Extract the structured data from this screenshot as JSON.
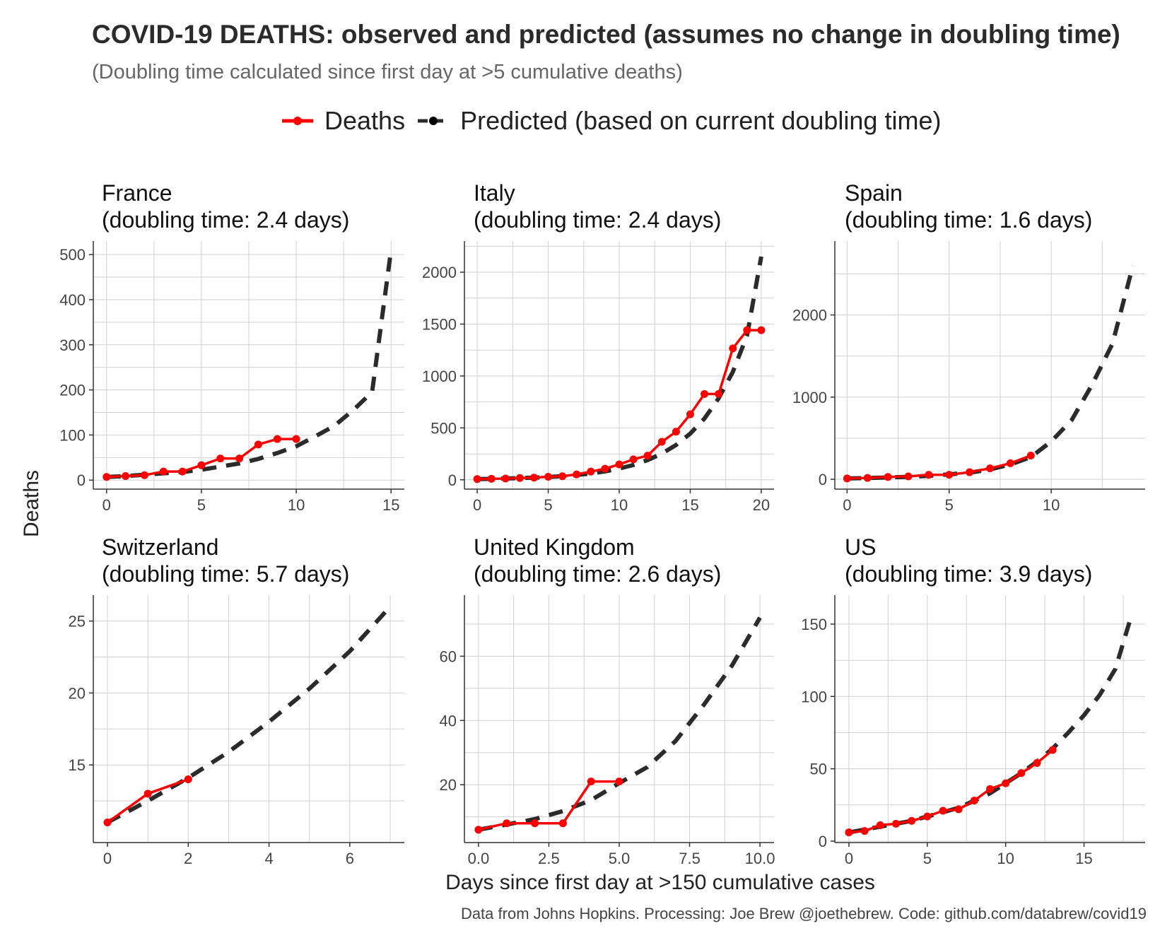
{
  "title": "COVID-19 DEATHS: observed and predicted (assumes no change in doubling time)",
  "subtitle": "(Doubling time calculated since first day at >5 cumulative deaths)",
  "legend": {
    "position": "top",
    "items": [
      {
        "label": "Deaths",
        "color": "#ff0000",
        "style": "solid-with-points"
      },
      {
        "label": "Predicted (based on current doubling time)",
        "color": "#2b2b2b",
        "style": "dashed"
      }
    ]
  },
  "ylabel": "Deaths",
  "xlabel": "Days since first day at >150 cumulative cases",
  "caption": "Data from Johns Hopkins. Processing: Joe Brew @joethebrew. Code: github.com/databrew/covid19",
  "colors": {
    "observed": "#ff0000",
    "predicted": "#2b2b2b",
    "grid": "#d0d0d0",
    "axis": "#333333"
  },
  "chart_data": [
    {
      "type": "line",
      "country": "France",
      "panel_title": "(doubling time: 2.4 days)",
      "xlim": [
        -0.7,
        15.7
      ],
      "ylim": [
        -20,
        530
      ],
      "xticks": [
        0,
        5,
        10,
        15
      ],
      "xtick_labels": [
        "0",
        "5",
        "10",
        "15"
      ],
      "yticks": [
        0,
        100,
        200,
        300,
        400,
        500
      ],
      "ytick_labels": [
        "0",
        "100",
        "200",
        "300",
        "400",
        "500"
      ],
      "grid": true,
      "observed": {
        "x": [
          0,
          1,
          2,
          3,
          4,
          5,
          6,
          7,
          8,
          9,
          10
        ],
        "y": [
          7,
          9,
          11,
          19,
          19,
          33,
          48,
          48,
          79,
          91,
          91
        ]
      },
      "predicted": {
        "x": [
          0,
          1,
          2,
          3,
          4,
          5,
          6,
          7,
          8,
          9,
          10,
          11,
          12,
          13,
          14,
          15
        ],
        "y": [
          7,
          9,
          12,
          15,
          18,
          23,
          30,
          37,
          47,
          60,
          75,
          97,
          120,
          155,
          195,
          510
        ]
      }
    },
    {
      "type": "line",
      "country": "Italy",
      "panel_title": "(doubling time: 2.4 days)",
      "xlim": [
        -0.9,
        20.9
      ],
      "ylim": [
        -90,
        2300
      ],
      "xticks": [
        0,
        5,
        10,
        15,
        20
      ],
      "xtick_labels": [
        "0",
        "5",
        "10",
        "15",
        "20"
      ],
      "yticks": [
        0,
        500,
        1000,
        1500,
        2000
      ],
      "ytick_labels": [
        "0",
        "500",
        "1000",
        "1500",
        "2000"
      ],
      "grid": true,
      "observed": {
        "x": [
          0,
          1,
          2,
          3,
          4,
          5,
          6,
          7,
          8,
          9,
          10,
          11,
          12,
          13,
          14,
          15,
          16,
          17,
          18,
          19,
          20
        ],
        "y": [
          7,
          10,
          12,
          17,
          21,
          29,
          34,
          52,
          79,
          107,
          148,
          197,
          233,
          366,
          463,
          631,
          827,
          827,
          1266,
          1441,
          1441
        ]
      },
      "predicted": {
        "x": [
          0,
          1,
          2,
          3,
          4,
          5,
          6,
          7,
          8,
          9,
          10,
          11,
          12,
          13,
          14,
          15,
          16,
          17,
          18,
          19,
          20
        ],
        "y": [
          7,
          9,
          12,
          16,
          21,
          27,
          35,
          46,
          61,
          81,
          108,
          143,
          190,
          252,
          335,
          445,
          590,
          785,
          1040,
          1390,
          2150
        ]
      }
    },
    {
      "type": "line",
      "country": "Spain",
      "panel_title": "(doubling time: 1.6 days)",
      "xlim": [
        -0.6,
        14.6
      ],
      "ylim": [
        -120,
        2900
      ],
      "xticks": [
        0,
        5,
        10
      ],
      "xtick_labels": [
        "0",
        "5",
        "10"
      ],
      "yticks": [
        0,
        1000,
        2000
      ],
      "ytick_labels": [
        "0",
        "1000",
        "2000"
      ],
      "grid": true,
      "observed": {
        "x": [
          0,
          1,
          2,
          3,
          4,
          5,
          6,
          7,
          8,
          9
        ],
        "y": [
          10,
          17,
          28,
          35,
          54,
          55,
          86,
          133,
          195,
          289
        ]
      },
      "predicted": {
        "x": [
          0,
          1,
          2,
          3,
          4,
          5,
          6,
          7,
          8,
          9,
          10,
          11,
          12,
          13,
          14
        ],
        "y": [
          10,
          15,
          22,
          30,
          42,
          60,
          80,
          120,
          180,
          270,
          460,
          720,
          1150,
          1650,
          2600
        ]
      }
    },
    {
      "type": "line",
      "country": "Switzerland",
      "panel_title": "(doubling time: 5.7 days)",
      "xlim": [
        -0.35,
        7.35
      ],
      "ylim": [
        9.6,
        26.8
      ],
      "xticks": [
        0,
        2,
        4,
        6
      ],
      "xtick_labels": [
        "0",
        "2",
        "4",
        "6"
      ],
      "yticks": [
        15,
        20,
        25
      ],
      "ytick_labels": [
        "15",
        "20",
        "25"
      ],
      "grid": true,
      "observed": {
        "x": [
          0,
          1,
          2
        ],
        "y": [
          11,
          13,
          14
        ]
      },
      "predicted": {
        "x": [
          0,
          1,
          2,
          3,
          4,
          5,
          6,
          7
        ],
        "y": [
          11,
          12.5,
          14.1,
          15.9,
          18.0,
          20.3,
          22.9,
          26.0
        ]
      }
    },
    {
      "type": "line",
      "country": "United Kingdom",
      "panel_title": "(doubling time: 2.6 days)",
      "xlim": [
        -0.5,
        10.5
      ],
      "ylim": [
        2.0,
        79
      ],
      "xticks": [
        0,
        2.5,
        5.0,
        7.5,
        10.0
      ],
      "xtick_labels": [
        "0.0",
        "2.5",
        "5.0",
        "7.5",
        "10.0"
      ],
      "yticks": [
        20,
        40,
        60
      ],
      "ytick_labels": [
        "20",
        "40",
        "60"
      ],
      "grid": true,
      "observed": {
        "x": [
          0,
          1,
          2,
          3,
          4,
          5
        ],
        "y": [
          6,
          8,
          8,
          8,
          21,
          21
        ]
      },
      "predicted": {
        "x": [
          0,
          1,
          2,
          3,
          4,
          5,
          6,
          7,
          8,
          9,
          10
        ],
        "y": [
          6,
          7.6,
          9.3,
          11.8,
          15.2,
          20.5,
          25.5,
          33.6,
          44.8,
          57,
          72
        ]
      }
    },
    {
      "type": "line",
      "country": "US",
      "panel_title": "(doubling time: 3.9 days)",
      "xlim": [
        -0.9,
        18.9
      ],
      "ylim": [
        -1,
        170
      ],
      "xticks": [
        0,
        5,
        10,
        15
      ],
      "xtick_labels": [
        "0",
        "5",
        "10",
        "15"
      ],
      "yticks": [
        0,
        50,
        100,
        150
      ],
      "ytick_labels": [
        "0",
        "50",
        "100",
        "150"
      ],
      "grid": true,
      "observed": {
        "x": [
          0,
          1,
          2,
          3,
          4,
          5,
          6,
          7,
          8,
          9,
          10,
          11,
          12,
          13
        ],
        "y": [
          6,
          7,
          11,
          12,
          14,
          17,
          21,
          22,
          28,
          36,
          40,
          47,
          54,
          63
        ]
      },
      "predicted": {
        "x": [
          0,
          1,
          2,
          3,
          4,
          5,
          6,
          7,
          8,
          9,
          10,
          11,
          12,
          13,
          14,
          15,
          16,
          17,
          18
        ],
        "y": [
          6,
          8,
          10,
          12,
          14,
          17,
          20,
          23,
          28,
          33,
          40,
          47,
          55,
          64,
          75,
          87,
          101,
          119,
          155
        ]
      }
    }
  ]
}
